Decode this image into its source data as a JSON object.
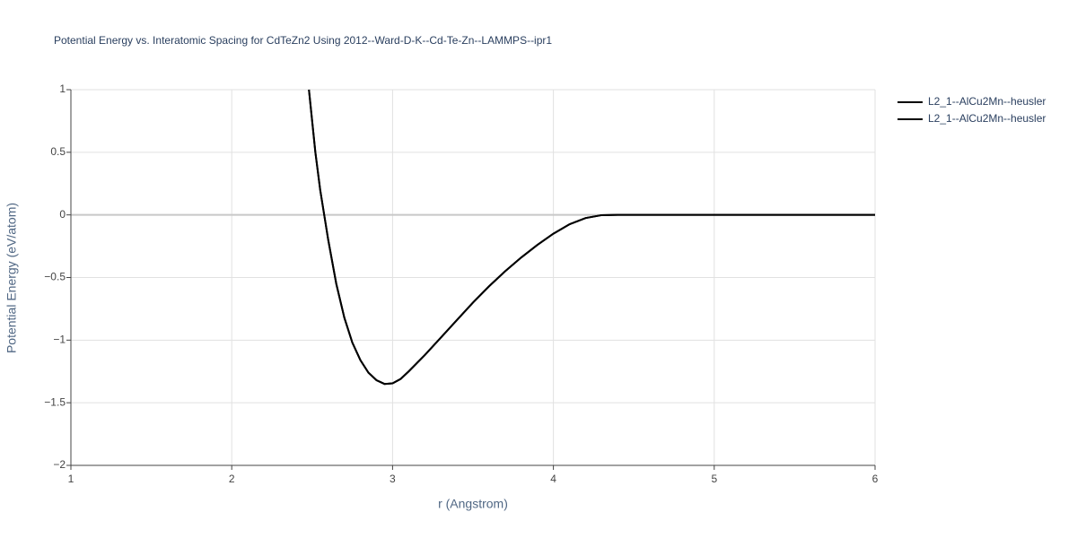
{
  "chart_data": {
    "type": "line",
    "title": "Potential Energy vs. Interatomic Spacing for CdTeZn2 Using 2012--Ward-D-K--Cd-Te-Zn--LAMMPS--ipr1",
    "x_label": "r (Angstrom)",
    "y_label": "Potential Energy (eV/atom)",
    "x": [
      2.48,
      2.52,
      2.55,
      2.6,
      2.65,
      2.7,
      2.75,
      2.8,
      2.85,
      2.9,
      2.95,
      3.0,
      3.05,
      3.1,
      3.2,
      3.3,
      3.4,
      3.5,
      3.6,
      3.7,
      3.8,
      3.9,
      4.0,
      4.1,
      4.2,
      4.3,
      4.4,
      5.0,
      6.0
    ],
    "series": [
      {
        "name": "L2_1--AlCu2Mn--heusler",
        "color": "#000000",
        "values": [
          1.0,
          0.5,
          0.2,
          -0.2,
          -0.55,
          -0.82,
          -1.02,
          -1.16,
          -1.26,
          -1.32,
          -1.35,
          -1.345,
          -1.31,
          -1.25,
          -1.12,
          -0.98,
          -0.84,
          -0.7,
          -0.57,
          -0.45,
          -0.34,
          -0.24,
          -0.15,
          -0.075,
          -0.025,
          -0.002,
          0,
          0,
          0
        ]
      },
      {
        "name": "L2_1--AlCu2Mn--heusler",
        "color": "#000000",
        "values": [
          1.0,
          0.5,
          0.2,
          -0.2,
          -0.55,
          -0.82,
          -1.02,
          -1.16,
          -1.26,
          -1.32,
          -1.35,
          -1.345,
          -1.31,
          -1.25,
          -1.12,
          -0.98,
          -0.84,
          -0.7,
          -0.57,
          -0.45,
          -0.34,
          -0.24,
          -0.15,
          -0.075,
          -0.025,
          -0.002,
          0,
          0,
          0
        ]
      }
    ],
    "xlim": [
      1,
      6
    ],
    "ylim": [
      -2,
      1
    ],
    "xticks": [
      1,
      2,
      3,
      4,
      5,
      6
    ],
    "yticks": [
      {
        "value": -2,
        "label": "−2"
      },
      {
        "value": -1.5,
        "label": "−1.5"
      },
      {
        "value": -1,
        "label": "−1"
      },
      {
        "value": -0.5,
        "label": "−0.5"
      },
      0,
      0.5,
      1
    ],
    "grid": true,
    "legend": "top-right"
  }
}
